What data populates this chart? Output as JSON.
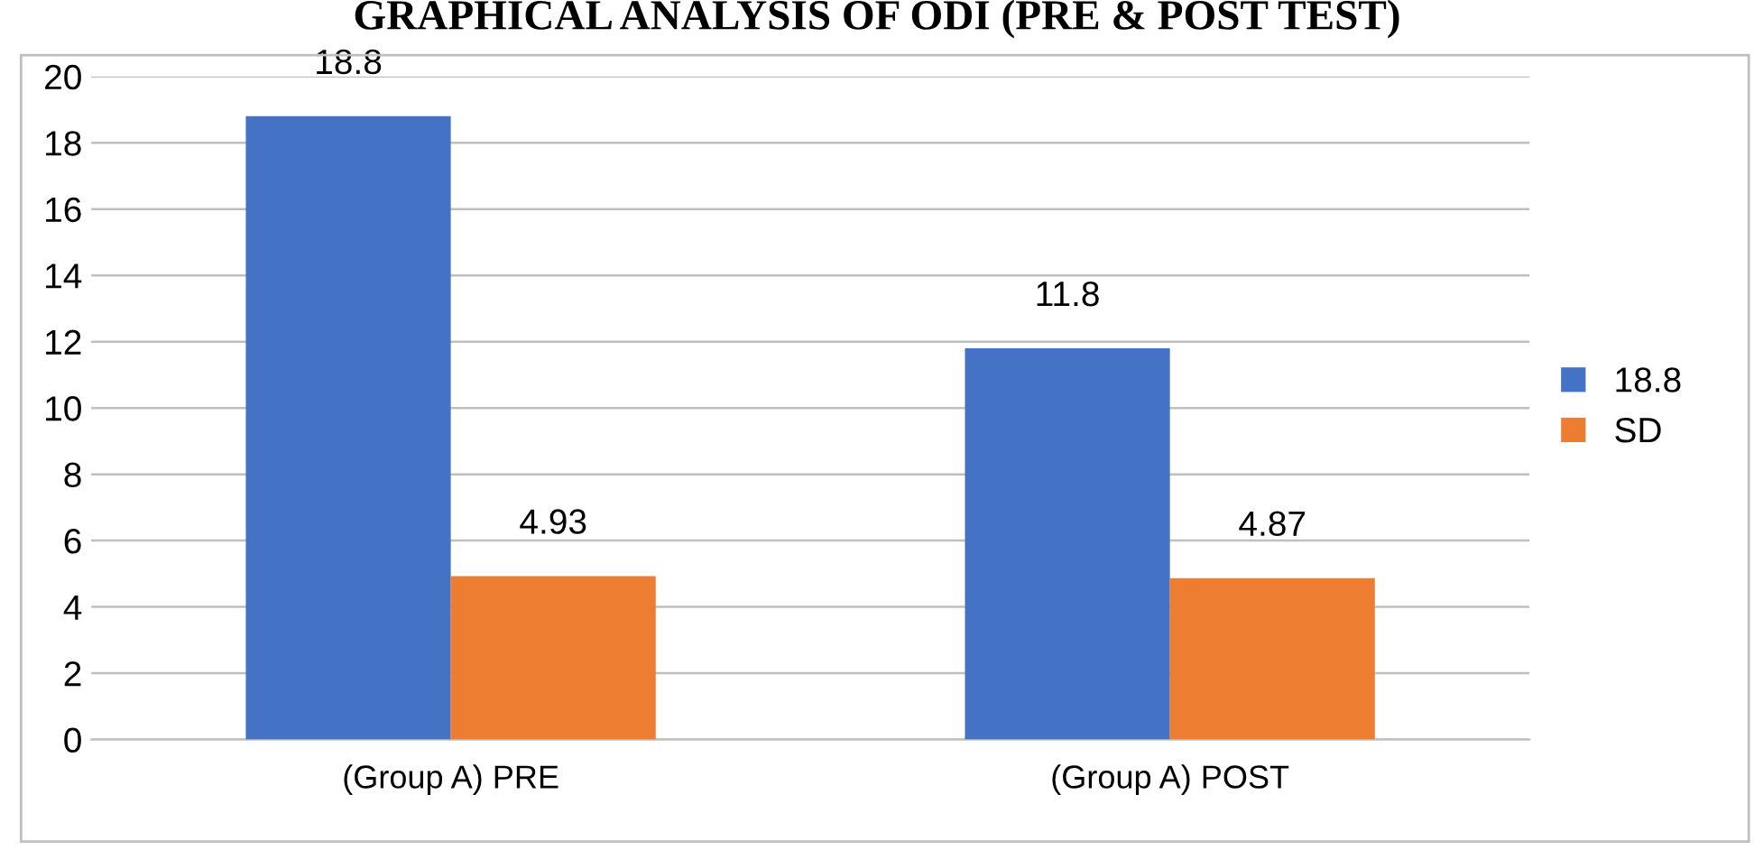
{
  "chart_data": {
    "type": "bar",
    "title": "GRAPHICAL ANALYSIS OF ODI (PRE & POST TEST)",
    "categories": [
      "(Group A) PRE",
      "(Group A) POST"
    ],
    "series": [
      {
        "name": "18.8",
        "color": "#4472c4",
        "values": [
          18.8,
          11.8
        ]
      },
      {
        "name": "SD",
        "color": "#ed7d31",
        "values": [
          4.93,
          4.87
        ]
      }
    ],
    "ylim": [
      0,
      20
    ],
    "yticks": [
      0,
      2,
      4,
      6,
      8,
      10,
      12,
      14,
      16,
      18,
      20
    ],
    "grid": "y",
    "legend": "right",
    "data_labels": true
  }
}
